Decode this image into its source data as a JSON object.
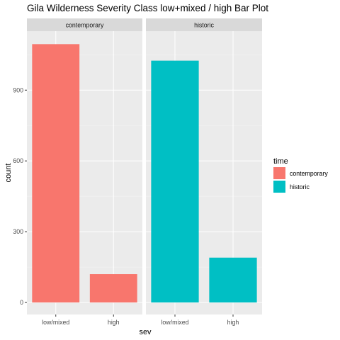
{
  "chart_data": {
    "type": "bar",
    "title": "Gila Wilderness Severity Class low+mixed / high Bar Plot",
    "xlabel": "sev",
    "ylabel": "count",
    "categories": [
      "low/mixed",
      "high"
    ],
    "ylim": [
      0,
      1150
    ],
    "yticks": [
      0,
      300,
      600,
      900
    ],
    "grid": true,
    "legend_position": "right",
    "facets": [
      {
        "label": "contemporary",
        "series": "contemporary",
        "values": [
          1095,
          120
        ]
      },
      {
        "label": "historic",
        "series": "historic",
        "values": [
          1025,
          190
        ]
      }
    ],
    "legend": {
      "title": "time",
      "items": [
        {
          "label": "contemporary",
          "color": "#F8766D"
        },
        {
          "label": "historic",
          "color": "#00BFC4"
        }
      ]
    }
  },
  "colors": {
    "panel_background": "#EBEBEB",
    "strip_background": "#D9D9D9",
    "grid_major": "#FFFFFF"
  }
}
